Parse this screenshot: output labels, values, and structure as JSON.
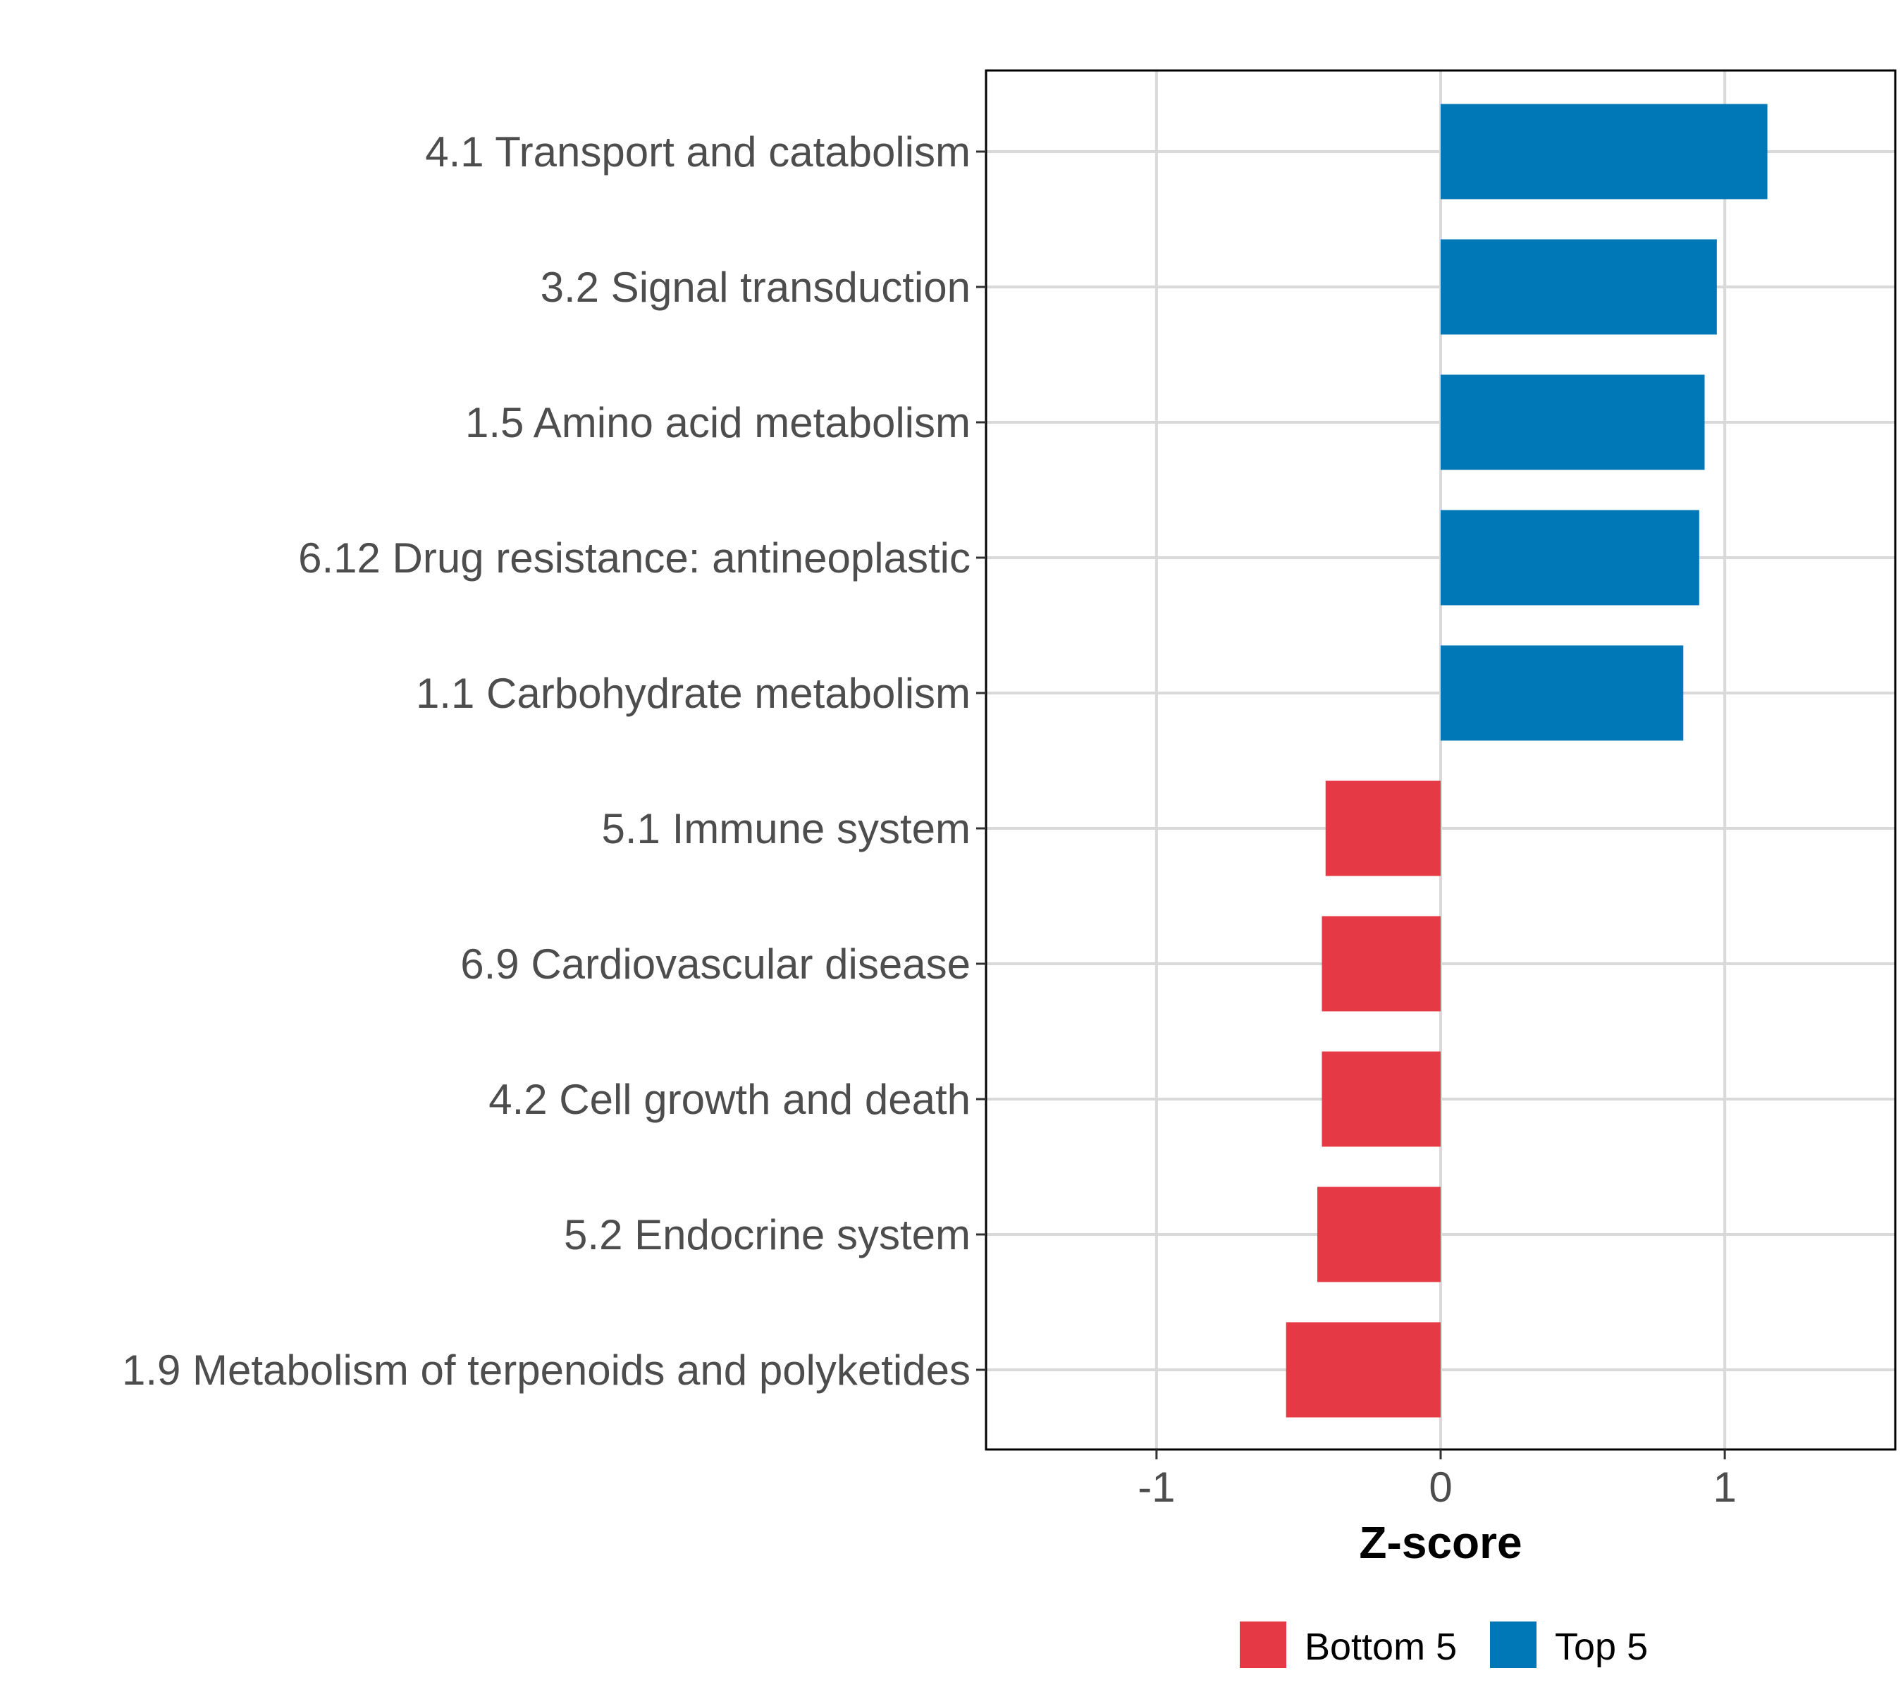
{
  "chart_data": {
    "type": "bar",
    "orientation": "horizontal",
    "title": "",
    "xlabel": "Z-score",
    "ylabel": "",
    "xlim": [
      -1.6,
      1.6
    ],
    "xticks": [
      -1,
      0,
      1
    ],
    "xtick_labels": [
      "-1",
      "0",
      "1"
    ],
    "grid": true,
    "legend_position": "bottom",
    "categories": [
      "4.1 Transport and catabolism",
      "3.2 Signal transduction",
      "1.5 Amino acid metabolism",
      "6.12 Drug resistance: antineoplastic",
      "1.1 Carbohydrate metabolism",
      "5.1 Immune system",
      "6.9 Cardiovascular disease",
      "4.2 Cell growth and death",
      "5.2 Endocrine system",
      "1.9 Metabolism of terpenoids and polyketides"
    ],
    "values": [
      1.15,
      0.972,
      0.929,
      0.91,
      0.854,
      -0.405,
      -0.418,
      -0.418,
      -0.434,
      -0.544
    ],
    "groups": [
      "Top 5",
      "Top 5",
      "Top 5",
      "Top 5",
      "Top 5",
      "Bottom 5",
      "Bottom 5",
      "Bottom 5",
      "Bottom 5",
      "Bottom 5"
    ],
    "legend": [
      {
        "name": "Bottom 5",
        "color": "#E63946"
      },
      {
        "name": "Top 5",
        "color": "#0077B6"
      }
    ]
  }
}
